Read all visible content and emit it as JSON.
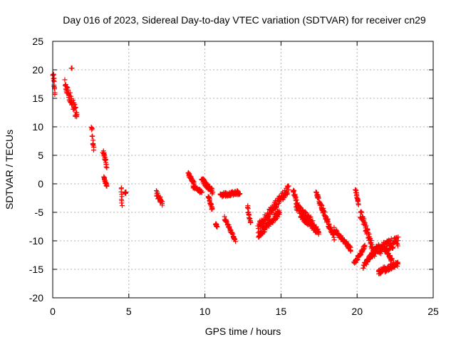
{
  "chart_data": {
    "type": "scatter",
    "title": "Day 016 of 2023, Sidereal Day-to-day VTEC variation (SDTVAR) for receiver cn29",
    "xlabel": "GPS time / hours",
    "ylabel": "SDTVAR / TECUs",
    "xlim": [
      0,
      25
    ],
    "ylim": [
      -20,
      25
    ],
    "xticks": [
      0,
      5,
      10,
      15,
      20,
      25
    ],
    "yticks": [
      -20,
      -15,
      -10,
      -5,
      0,
      5,
      10,
      15,
      20,
      25
    ],
    "grid": true,
    "marker": "plus",
    "color": "#ff0000",
    "segments": [
      {
        "x": [
          0.0,
          0.15
        ],
        "y": [
          20.0,
          15.5
        ],
        "jitter": 2.0
      },
      {
        "x": [
          0.8,
          1.6
        ],
        "y": [
          17.5,
          12.0
        ],
        "jitter": 1.8
      },
      {
        "x": [
          1.25,
          1.25
        ],
        "y": [
          20.3,
          20.3
        ],
        "jitter": 0.0
      },
      {
        "x": [
          2.55,
          2.7
        ],
        "y": [
          10.0,
          5.8
        ],
        "jitter": 1.0
      },
      {
        "x": [
          3.3,
          3.55
        ],
        "y": [
          5.8,
          3.2
        ],
        "jitter": 0.8
      },
      {
        "x": [
          3.35,
          3.55
        ],
        "y": [
          1.2,
          -0.5
        ],
        "jitter": 0.4
      },
      {
        "x": [
          4.5,
          4.55
        ],
        "y": [
          -0.5,
          -4.0
        ],
        "jitter": 0.5
      },
      {
        "x": [
          4.75,
          4.8
        ],
        "y": [
          -1.5,
          -1.6
        ],
        "jitter": 0.3
      },
      {
        "x": [
          6.8,
          7.2
        ],
        "y": [
          -1.5,
          -3.5
        ],
        "jitter": 1.0
      },
      {
        "x": [
          8.9,
          9.3
        ],
        "y": [
          1.8,
          0.0
        ],
        "jitter": 0.6
      },
      {
        "x": [
          9.2,
          9.8
        ],
        "y": [
          -0.5,
          -1.5
        ],
        "jitter": 0.5
      },
      {
        "x": [
          9.8,
          10.5
        ],
        "y": [
          0.8,
          -1.5
        ],
        "jitter": 1.0
      },
      {
        "x": [
          10.2,
          10.5
        ],
        "y": [
          -2.0,
          -4.5
        ],
        "jitter": 0.6
      },
      {
        "x": [
          10.7,
          10.8
        ],
        "y": [
          -7.0,
          -7.5
        ],
        "jitter": 0.3
      },
      {
        "x": [
          11.0,
          12.3
        ],
        "y": [
          -2.0,
          -1.5
        ],
        "jitter": 0.7
      },
      {
        "x": [
          11.3,
          12.0
        ],
        "y": [
          -6.0,
          -10.0
        ],
        "jitter": 0.6
      },
      {
        "x": [
          12.8,
          13.0
        ],
        "y": [
          -4.0,
          -7.0
        ],
        "jitter": 0.6
      },
      {
        "x": [
          13.5,
          15.5
        ],
        "y": [
          -7.5,
          -0.8
        ],
        "jitter": 1.5
      },
      {
        "x": [
          13.5,
          14.9
        ],
        "y": [
          -9.0,
          -5.0
        ],
        "jitter": 1.2
      },
      {
        "x": [
          15.8,
          16.2
        ],
        "y": [
          -1.0,
          -5.0
        ],
        "jitter": 0.8
      },
      {
        "x": [
          16.0,
          17.1
        ],
        "y": [
          -4.0,
          -7.0
        ],
        "jitter": 1.5
      },
      {
        "x": [
          16.3,
          17.5
        ],
        "y": [
          -5.5,
          -8.5
        ],
        "jitter": 1.2
      },
      {
        "x": [
          17.3,
          17.8
        ],
        "y": [
          -1.5,
          -5.0
        ],
        "jitter": 0.8
      },
      {
        "x": [
          17.8,
          18.5
        ],
        "y": [
          -5.0,
          -9.5
        ],
        "jitter": 1.0
      },
      {
        "x": [
          18.5,
          19.6
        ],
        "y": [
          -8.0,
          -11.5
        ],
        "jitter": 0.8
      },
      {
        "x": [
          19.9,
          20.1
        ],
        "y": [
          -1.0,
          -3.5
        ],
        "jitter": 0.4
      },
      {
        "x": [
          19.8,
          20.5
        ],
        "y": [
          -14.0,
          -11.0
        ],
        "jitter": 0.6
      },
      {
        "x": [
          20.2,
          21.0
        ],
        "y": [
          -5.0,
          -11.0
        ],
        "jitter": 1.5
      },
      {
        "x": [
          20.4,
          21.1
        ],
        "y": [
          -14.5,
          -12.0
        ],
        "jitter": 0.8
      },
      {
        "x": [
          21.0,
          22.7
        ],
        "y": [
          -12.0,
          -10.0
        ],
        "jitter": 1.8
      },
      {
        "x": [
          21.4,
          22.7
        ],
        "y": [
          -15.5,
          -14.0
        ],
        "jitter": 1.0
      },
      {
        "x": [
          21.8,
          22.3
        ],
        "y": [
          -11.0,
          -13.5
        ],
        "jitter": 0.8
      }
    ]
  }
}
